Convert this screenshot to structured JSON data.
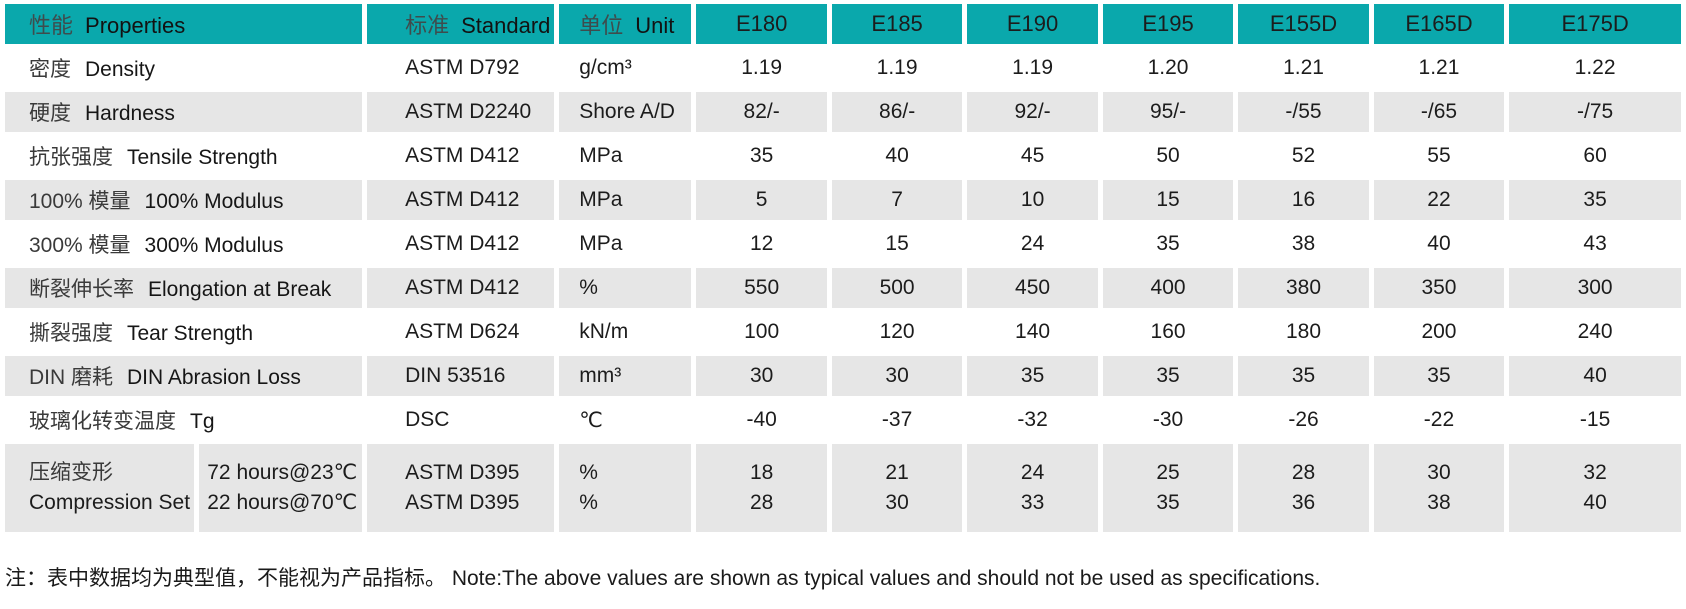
{
  "colors": {
    "header_bg": "#0aa8ac",
    "alt_row_bg": "#e6e6e6",
    "text": "#1c1c1c"
  },
  "table": {
    "columns": [
      {
        "zh": "性能",
        "en": "Properties"
      },
      {
        "zh": "标准",
        "en": "Standard"
      },
      {
        "zh": "单位",
        "en": "Unit"
      }
    ],
    "products": [
      "E180",
      "E185",
      "E190",
      "E195",
      "E155D",
      "E165D",
      "E175D"
    ],
    "rows": [
      {
        "property_zh": "密度",
        "property_en": "Density",
        "standard": "ASTM D792",
        "unit": "g/cm³",
        "values": [
          "1.19",
          "1.19",
          "1.19",
          "1.20",
          "1.21",
          "1.21",
          "1.22"
        ]
      },
      {
        "property_zh": "硬度",
        "property_en": "Hardness",
        "standard": "ASTM D2240",
        "unit": "Shore A/D",
        "values": [
          "82/-",
          "86/-",
          "92/-",
          "95/-",
          "-/55",
          "-/65",
          "-/75"
        ]
      },
      {
        "property_zh": "抗张强度",
        "property_en": "Tensile Strength",
        "standard": "ASTM D412",
        "unit": "MPa",
        "values": [
          "35",
          "40",
          "45",
          "50",
          "52",
          "55",
          "60"
        ]
      },
      {
        "property_zh": "100% 模量",
        "property_en": "100% Modulus",
        "standard": "ASTM D412",
        "unit": "MPa",
        "values": [
          "5",
          "7",
          "10",
          "15",
          "16",
          "22",
          "35"
        ]
      },
      {
        "property_zh": "300% 模量",
        "property_en": "300% Modulus",
        "standard": "ASTM D412",
        "unit": "MPa",
        "values": [
          "12",
          "15",
          "24",
          "35",
          "38",
          "40",
          "43"
        ]
      },
      {
        "property_zh": "断裂伸长率",
        "property_en": "Elongation at Break",
        "standard": "ASTM D412",
        "unit": "%",
        "values": [
          "550",
          "500",
          "450",
          "400",
          "380",
          "350",
          "300"
        ]
      },
      {
        "property_zh": "撕裂强度",
        "property_en": "Tear Strength",
        "standard": "ASTM D624",
        "unit": "kN/m",
        "values": [
          "100",
          "120",
          "140",
          "160",
          "180",
          "200",
          "240"
        ]
      },
      {
        "property_zh": "DIN 磨耗",
        "property_en": "DIN Abrasion Loss",
        "standard": "DIN 53516",
        "unit": "mm³",
        "values": [
          "30",
          "30",
          "35",
          "35",
          "35",
          "35",
          "40"
        ]
      },
      {
        "property_zh": "玻璃化转变温度",
        "property_en": "Tg",
        "standard": "DSC",
        "unit": "℃",
        "values": [
          "-40",
          "-37",
          "-32",
          "-30",
          "-26",
          "-22",
          "-15"
        ]
      }
    ],
    "compression": {
      "property_zh": "压缩变形",
      "property_en": "Compression Set",
      "conditions": [
        "72 hours@23℃",
        "22 hours@70℃"
      ],
      "standards": [
        "ASTM D395",
        "ASTM D395"
      ],
      "units": [
        "%",
        "%"
      ],
      "values": [
        [
          "18",
          "28"
        ],
        [
          "21",
          "30"
        ],
        [
          "24",
          "33"
        ],
        [
          "25",
          "35"
        ],
        [
          "28",
          "36"
        ],
        [
          "30",
          "38"
        ],
        [
          "32",
          "40"
        ]
      ]
    }
  },
  "footnote": "注：表中数据均为典型值，不能视为产品指标。 Note:The above values are shown as typical values and should not be used as specifications."
}
